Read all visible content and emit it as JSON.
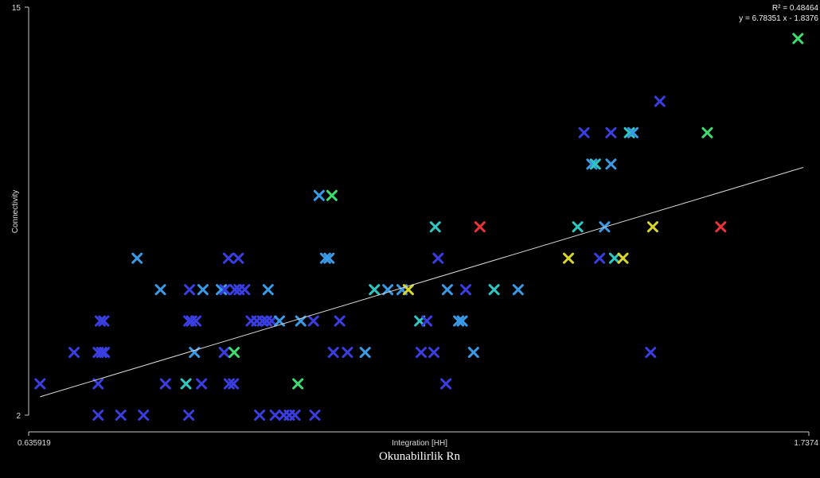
{
  "chart_data": {
    "type": "scatter",
    "xlabel": "Integration [HH]",
    "ylabel": "Connectivity",
    "caption": "Okunabilirlik Rn",
    "x_ticks": [
      "0.635919",
      "1.7374"
    ],
    "y_ticks": [
      "15",
      "2"
    ],
    "xlim": [
      0.635919,
      1.7374
    ],
    "ylim": [
      2,
      15
    ],
    "grid": false,
    "regression": {
      "r2_text": "R² = 0.48464",
      "equation_text": "y = 6.78351 x - 1.8376",
      "slope": 6.78351,
      "intercept": -1.8376
    },
    "colors": {
      "background": "#000000",
      "axis": "#c8c8c8",
      "trendline": "#d8d8d8",
      "palette": {
        "blue": "#3a3ee0",
        "lightblue": "#3a9ae6",
        "cyan": "#2fc7c2",
        "green": "#3ddc6e",
        "yellow": "#d8d62a",
        "red": "#e8333a"
      }
    },
    "points": [
      {
        "x": 0.652,
        "y": 3,
        "c": "blue"
      },
      {
        "x": 0.7,
        "y": 4,
        "c": "blue"
      },
      {
        "x": 0.734,
        "y": 3,
        "c": "blue"
      },
      {
        "x": 0.734,
        "y": 2,
        "c": "blue"
      },
      {
        "x": 0.734,
        "y": 4,
        "c": "blue"
      },
      {
        "x": 0.739,
        "y": 4,
        "c": "blue"
      },
      {
        "x": 0.737,
        "y": 5,
        "c": "blue"
      },
      {
        "x": 0.742,
        "y": 5,
        "c": "blue"
      },
      {
        "x": 0.743,
        "y": 4,
        "c": "blue"
      },
      {
        "x": 0.766,
        "y": 2,
        "c": "blue"
      },
      {
        "x": 0.798,
        "y": 2,
        "c": "blue"
      },
      {
        "x": 0.789,
        "y": 7,
        "c": "lightblue"
      },
      {
        "x": 0.822,
        "y": 6,
        "c": "lightblue"
      },
      {
        "x": 0.829,
        "y": 3,
        "c": "blue"
      },
      {
        "x": 0.862,
        "y": 2,
        "c": "blue"
      },
      {
        "x": 0.858,
        "y": 3,
        "c": "cyan"
      },
      {
        "x": 0.862,
        "y": 5,
        "c": "blue"
      },
      {
        "x": 0.863,
        "y": 6,
        "c": "blue"
      },
      {
        "x": 0.866,
        "y": 5,
        "c": "blue"
      },
      {
        "x": 0.87,
        "y": 4,
        "c": "lightblue"
      },
      {
        "x": 0.872,
        "y": 5,
        "c": "blue"
      },
      {
        "x": 0.88,
        "y": 3,
        "c": "blue"
      },
      {
        "x": 0.882,
        "y": 6,
        "c": "lightblue"
      },
      {
        "x": 0.908,
        "y": 6,
        "c": "lightblue"
      },
      {
        "x": 0.912,
        "y": 4,
        "c": "blue"
      },
      {
        "x": 0.913,
        "y": 6,
        "c": "blue"
      },
      {
        "x": 0.918,
        "y": 7,
        "c": "blue"
      },
      {
        "x": 0.919,
        "y": 3,
        "c": "blue"
      },
      {
        "x": 0.925,
        "y": 3,
        "c": "blue"
      },
      {
        "x": 0.926,
        "y": 4,
        "c": "green"
      },
      {
        "x": 0.927,
        "y": 6,
        "c": "blue"
      },
      {
        "x": 0.932,
        "y": 7,
        "c": "blue"
      },
      {
        "x": 0.933,
        "y": 6,
        "c": "blue"
      },
      {
        "x": 0.941,
        "y": 6,
        "c": "blue"
      },
      {
        "x": 0.95,
        "y": 5,
        "c": "blue"
      },
      {
        "x": 0.958,
        "y": 5,
        "c": "blue"
      },
      {
        "x": 0.962,
        "y": 2,
        "c": "blue"
      },
      {
        "x": 0.966,
        "y": 5,
        "c": "blue"
      },
      {
        "x": 0.972,
        "y": 5,
        "c": "blue"
      },
      {
        "x": 0.974,
        "y": 6,
        "c": "lightblue"
      },
      {
        "x": 0.979,
        "y": 5,
        "c": "blue"
      },
      {
        "x": 0.984,
        "y": 2,
        "c": "blue"
      },
      {
        "x": 0.99,
        "y": 5,
        "c": "lightblue"
      },
      {
        "x": 0.996,
        "y": 2,
        "c": "blue"
      },
      {
        "x": 1.004,
        "y": 2,
        "c": "blue"
      },
      {
        "x": 1.012,
        "y": 2,
        "c": "blue"
      },
      {
        "x": 1.016,
        "y": 3,
        "c": "green"
      },
      {
        "x": 1.02,
        "y": 5,
        "c": "lightblue"
      },
      {
        "x": 1.038,
        "y": 5,
        "c": "blue"
      },
      {
        "x": 1.04,
        "y": 2,
        "c": "blue"
      },
      {
        "x": 1.046,
        "y": 9,
        "c": "lightblue"
      },
      {
        "x": 1.055,
        "y": 7,
        "c": "lightblue"
      },
      {
        "x": 1.06,
        "y": 7,
        "c": "lightblue"
      },
      {
        "x": 1.064,
        "y": 9,
        "c": "green"
      },
      {
        "x": 1.066,
        "y": 4,
        "c": "blue"
      },
      {
        "x": 1.075,
        "y": 5,
        "c": "blue"
      },
      {
        "x": 1.086,
        "y": 4,
        "c": "blue"
      },
      {
        "x": 1.111,
        "y": 4,
        "c": "lightblue"
      },
      {
        "x": 1.124,
        "y": 6,
        "c": "cyan"
      },
      {
        "x": 1.143,
        "y": 6,
        "c": "lightblue"
      },
      {
        "x": 1.163,
        "y": 6,
        "c": "lightblue"
      },
      {
        "x": 1.172,
        "y": 6,
        "c": "yellow"
      },
      {
        "x": 1.188,
        "y": 5,
        "c": "cyan"
      },
      {
        "x": 1.19,
        "y": 4,
        "c": "blue"
      },
      {
        "x": 1.198,
        "y": 5,
        "c": "blue"
      },
      {
        "x": 1.208,
        "y": 4,
        "c": "blue"
      },
      {
        "x": 1.21,
        "y": 8,
        "c": "cyan"
      },
      {
        "x": 1.214,
        "y": 7,
        "c": "blue"
      },
      {
        "x": 1.225,
        "y": 3,
        "c": "blue"
      },
      {
        "x": 1.227,
        "y": 6,
        "c": "lightblue"
      },
      {
        "x": 1.243,
        "y": 5,
        "c": "lightblue"
      },
      {
        "x": 1.248,
        "y": 5,
        "c": "lightblue"
      },
      {
        "x": 1.253,
        "y": 6,
        "c": "blue"
      },
      {
        "x": 1.264,
        "y": 4,
        "c": "lightblue"
      },
      {
        "x": 1.273,
        "y": 8,
        "c": "red"
      },
      {
        "x": 1.293,
        "y": 6,
        "c": "cyan"
      },
      {
        "x": 1.327,
        "y": 6,
        "c": "lightblue"
      },
      {
        "x": 1.398,
        "y": 7,
        "c": "yellow"
      },
      {
        "x": 1.411,
        "y": 8,
        "c": "cyan"
      },
      {
        "x": 1.42,
        "y": 11,
        "c": "blue"
      },
      {
        "x": 1.431,
        "y": 10,
        "c": "lightblue"
      },
      {
        "x": 1.436,
        "y": 10,
        "c": "cyan"
      },
      {
        "x": 1.442,
        "y": 7,
        "c": "blue"
      },
      {
        "x": 1.449,
        "y": 8,
        "c": "lightblue"
      },
      {
        "x": 1.458,
        "y": 10,
        "c": "lightblue"
      },
      {
        "x": 1.458,
        "y": 11,
        "c": "blue"
      },
      {
        "x": 1.463,
        "y": 7,
        "c": "cyan"
      },
      {
        "x": 1.475,
        "y": 7,
        "c": "yellow"
      },
      {
        "x": 1.484,
        "y": 11,
        "c": "cyan"
      },
      {
        "x": 1.489,
        "y": 11,
        "c": "lightblue"
      },
      {
        "x": 1.514,
        "y": 4,
        "c": "blue"
      },
      {
        "x": 1.517,
        "y": 8,
        "c": "yellow"
      },
      {
        "x": 1.527,
        "y": 12,
        "c": "blue"
      },
      {
        "x": 1.594,
        "y": 11,
        "c": "green"
      },
      {
        "x": 1.613,
        "y": 8,
        "c": "red"
      },
      {
        "x": 1.722,
        "y": 14,
        "c": "green"
      }
    ]
  }
}
